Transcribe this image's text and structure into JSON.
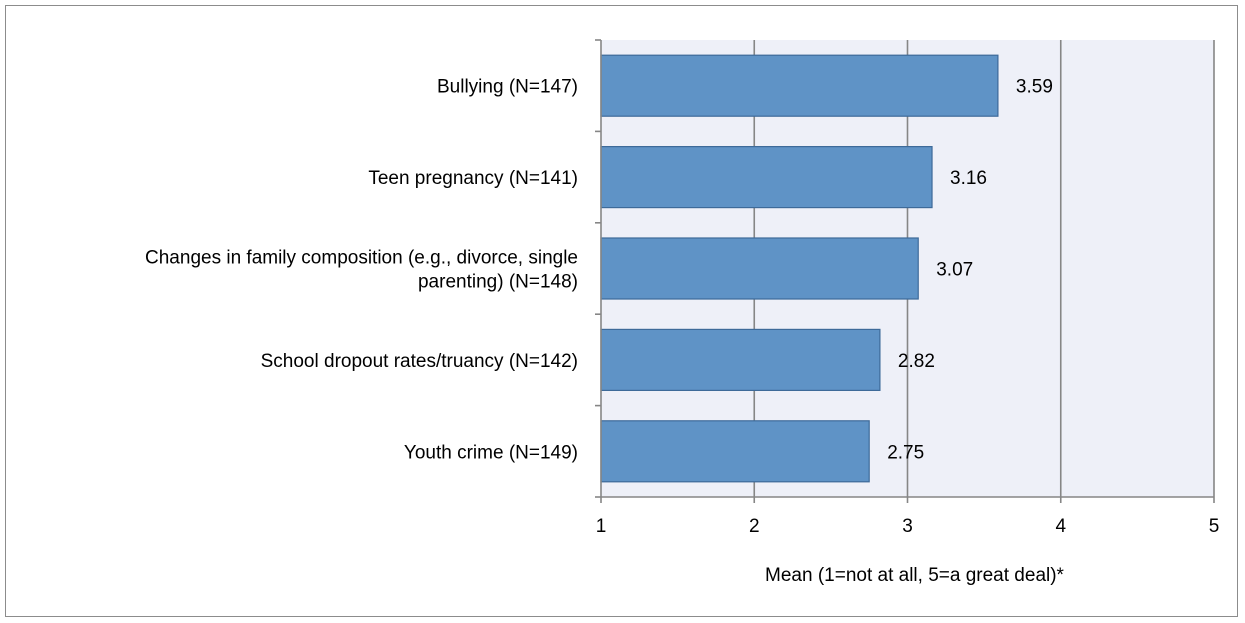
{
  "chart_data": {
    "type": "bar",
    "orientation": "horizontal",
    "categories": [
      [
        "Bullying (N=147)"
      ],
      [
        "Teen pregnancy (N=141)"
      ],
      [
        "Changes in family composition (e.g., divorce, single",
        "parenting) (N=148)"
      ],
      [
        "School dropout rates/truancy (N=142)"
      ],
      [
        "Youth crime (N=149)"
      ]
    ],
    "values": [
      3.59,
      3.16,
      3.07,
      2.82,
      2.75
    ],
    "value_labels": [
      "3.59",
      "3.16",
      "3.07",
      "2.82",
      "2.75"
    ],
    "xlim": [
      1,
      5
    ],
    "xticks": [
      "1",
      "2",
      "3",
      "4",
      "5"
    ],
    "xlabel": "Mean (1=not at all, 5=a great deal)*",
    "ylabel": "",
    "title": "",
    "grid": "vertical",
    "legend": "none",
    "colors": {
      "bar_fill": "#5f93c6",
      "bar_stroke": "#3d6a99",
      "plot_background": "#eef0f8",
      "gridline": "#868686",
      "axis": "#868686"
    }
  }
}
